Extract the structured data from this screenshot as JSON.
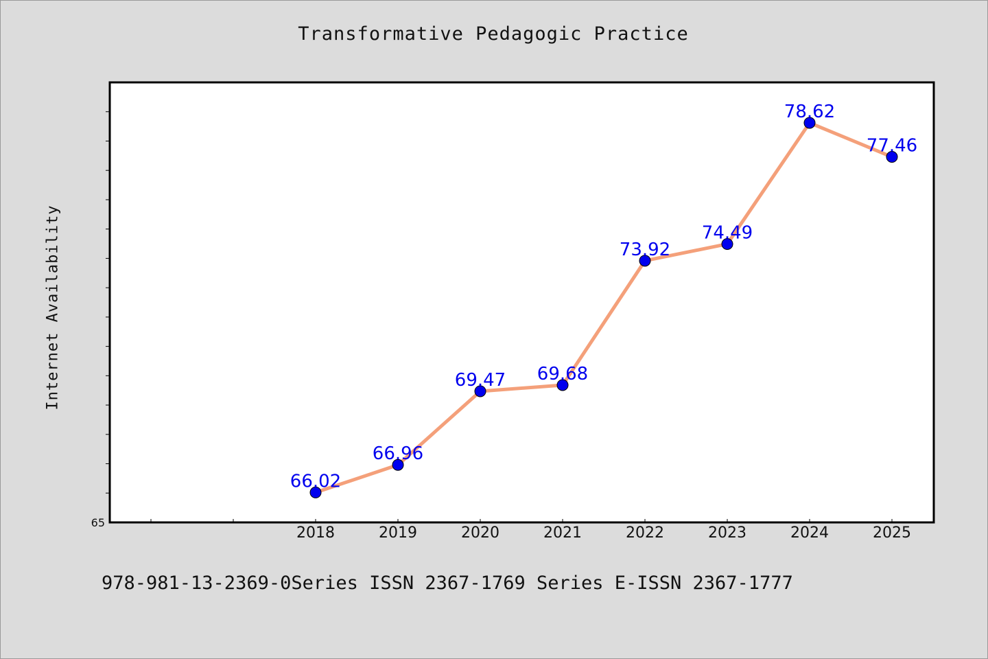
{
  "chart_data": {
    "type": "line",
    "title": "Transformative Pedagogic Practice",
    "ylabel": "Internet Availability",
    "xlabel": "",
    "categories": [
      "2018",
      "2019",
      "2020",
      "2021",
      "2022",
      "2023",
      "2024",
      "2025"
    ],
    "values": [
      66.02,
      66.96,
      69.47,
      69.68,
      73.92,
      74.49,
      78.62,
      77.46
    ],
    "data_labels": [
      "66.02",
      "66.96",
      "69.47",
      "69.68",
      "73.92",
      "74.49",
      "78.62",
      "77.46"
    ],
    "ylim": [
      65,
      80
    ],
    "y_tick_labels": [
      "65"
    ],
    "grid": false,
    "line_color": "#f4a07a",
    "marker_color": "#0000ee",
    "label_color": "#0000ee"
  },
  "footer_note": "978-981-13-2369-0Series ISSN 2367-1769 Series E-ISSN 2367-1777"
}
